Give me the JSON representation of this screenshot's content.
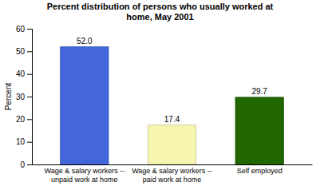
{
  "chart_data": {
    "type": "bar",
    "title": "Percent distribution of persons who usually worked at\nhome, May 2001",
    "categories": [
      "Wage & salary workers --\nunpaid work at home",
      "Wage & salary workers --\npaid work at home",
      "Self employed"
    ],
    "values": [
      52.0,
      17.4,
      29.7
    ],
    "value_labels": [
      "52.0",
      "17.4",
      "29.7"
    ],
    "colors": [
      "#4466dd",
      "#f5f5b0",
      "#226600"
    ],
    "ylabel": "Percent",
    "ylim": [
      0,
      60
    ],
    "yticks": [
      0,
      10,
      20,
      30,
      40,
      50,
      60
    ],
    "grid": false,
    "data_labels": true
  }
}
